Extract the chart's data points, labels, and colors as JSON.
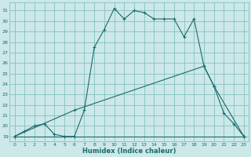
{
  "xlabel": "Humidex (Indice chaleur)",
  "bg_color": "#cce8e8",
  "grid_color": "#7ab8b8",
  "line_color": "#1a6b6b",
  "xlim": [
    -0.5,
    23.5
  ],
  "ylim": [
    18.5,
    31.8
  ],
  "yticks": [
    19,
    20,
    21,
    22,
    23,
    24,
    25,
    26,
    27,
    28,
    29,
    30,
    31
  ],
  "xticks": [
    0,
    1,
    2,
    3,
    4,
    5,
    6,
    7,
    8,
    9,
    10,
    11,
    12,
    13,
    14,
    15,
    16,
    17,
    18,
    19,
    20,
    21,
    22,
    23
  ],
  "line1_x": [
    0,
    1,
    2,
    3,
    4,
    5,
    6,
    7,
    8,
    9,
    10,
    11,
    12,
    13,
    14,
    15,
    16,
    17,
    18,
    19,
    20,
    21,
    22,
    23
  ],
  "line1_y": [
    19.0,
    19.5,
    20.0,
    20.2,
    19.2,
    19.0,
    19.0,
    21.5,
    27.5,
    29.2,
    31.2,
    30.2,
    31.0,
    30.8,
    30.2,
    30.2,
    30.2,
    28.5,
    30.2,
    25.7,
    23.8,
    21.2,
    20.2,
    19.0
  ],
  "line2_x": [
    0,
    23
  ],
  "line2_y": [
    19.0,
    19.0
  ],
  "line3_x": [
    0,
    6,
    19,
    20,
    23
  ],
  "line3_y": [
    19.0,
    21.5,
    25.7,
    23.8,
    19.0
  ]
}
